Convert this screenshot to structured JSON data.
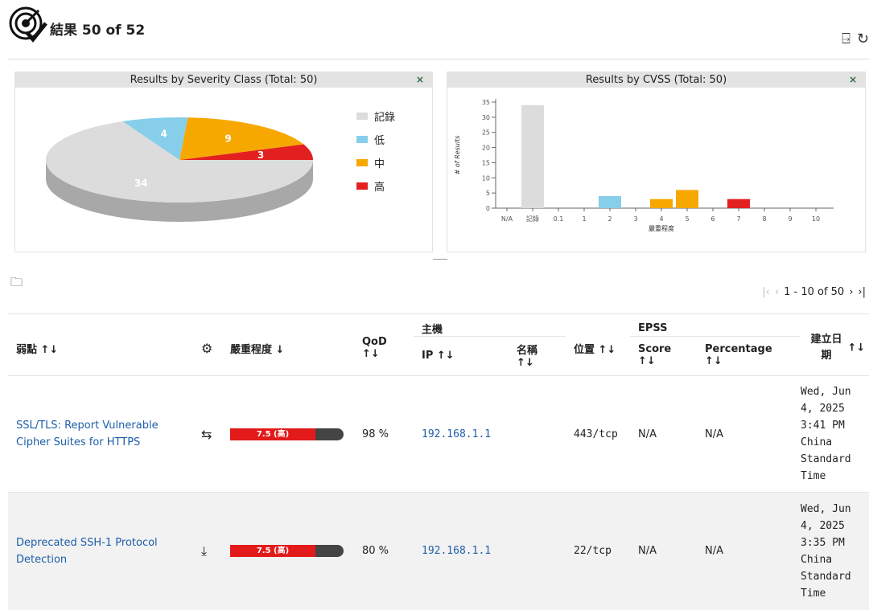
{
  "header": {
    "title": "結果 50 of 52",
    "actions": [
      "export-icon",
      "refresh-icon"
    ]
  },
  "severity_panel": {
    "title": "Results by Severity Class (Total: 50)",
    "close": "×",
    "legend": [
      {
        "label": "記錄",
        "color": "#dcdcdc"
      },
      {
        "label": "低",
        "color": "#87ceeb"
      },
      {
        "label": "中",
        "color": "#f7a800"
      },
      {
        "label": "高",
        "color": "#e32020"
      }
    ]
  },
  "cvss_panel": {
    "title": "Results by CVSS (Total: 50)",
    "close": "×"
  },
  "chart_data": [
    {
      "type": "pie",
      "title": "Results by Severity Class (Total: 50)",
      "categories": [
        "記錄",
        "低",
        "中",
        "高"
      ],
      "values": [
        34,
        4,
        9,
        3
      ],
      "colors": [
        "#dcdcdc",
        "#87ceeb",
        "#f7a800",
        "#e32020"
      ],
      "legend": "right"
    },
    {
      "type": "bar",
      "title": "Results by CVSS (Total: 50)",
      "categories": [
        "N/A",
        "記錄",
        "0.1",
        "1",
        "2",
        "3",
        "4",
        "5",
        "6",
        "7",
        "8",
        "9",
        "10"
      ],
      "values": [
        0,
        34,
        0,
        0,
        4,
        0,
        3,
        6,
        0,
        3,
        0,
        0,
        0
      ],
      "colors": [
        "#dcdcdc",
        "#dcdcdc",
        "#dcdcdc",
        "#dcdcdc",
        "#87ceeb",
        "#87ceeb",
        "#f7a800",
        "#f7a800",
        "#f7a800",
        "#e32020",
        "#e32020",
        "#e32020",
        "#e32020"
      ],
      "xlabel": "嚴重程度",
      "ylabel": "# of Results",
      "ylim": [
        0,
        35
      ],
      "yticks": [
        0,
        5,
        10,
        15,
        20,
        25,
        30,
        35
      ]
    }
  ],
  "pager": {
    "first": "|‹",
    "prev": "‹",
    "range": "1 - 10 of 50",
    "next": "›",
    "last": "›|"
  },
  "table": {
    "headers": {
      "vuln": "弱點 ↑↓",
      "severity": "嚴重程度 ↓",
      "qod": "QoD ↑↓",
      "host": "主機",
      "ip": "IP ↑↓",
      "name": "名稱 ↑↓",
      "location": "位置 ↑↓",
      "epss": "EPSS",
      "score": "Score ↑↓",
      "percentage": "Percentage ↑↓",
      "created": "建立日期",
      "created_sort": "↑↓"
    },
    "rows": [
      {
        "vuln": "SSL/TLS: Report Vulnerable Cipher Suites for HTTPS",
        "solution_icon": "vendor-fix-icon",
        "severity_label": "7.5 (高)",
        "severity_value": 7.5,
        "qod": "98 %",
        "ip": "192.168.1.1",
        "name": "",
        "location": "443/tcp",
        "score": "N/A",
        "percentage": "N/A",
        "created": "Wed, Jun 4, 2025 3:41 PM China Standard Time"
      },
      {
        "vuln": "Deprecated SSH-1 Protocol Detection",
        "solution_icon": "download-install-icon",
        "severity_label": "7.5 (高)",
        "severity_value": 7.5,
        "qod": "80 %",
        "ip": "192.168.1.1",
        "name": "",
        "location": "22/tcp",
        "score": "N/A",
        "percentage": "N/A",
        "created": "Wed, Jun 4, 2025 3:35 PM China Standard Time"
      }
    ]
  }
}
